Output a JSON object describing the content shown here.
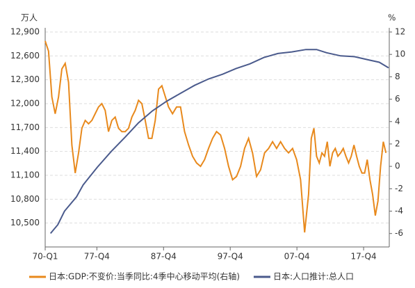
{
  "chart_data": {
    "type": "line",
    "y_unit_label": "万人",
    "y2_unit_label": "%",
    "xlim": [
      1970,
      2021.6
    ],
    "xticks": [
      {
        "value": 1970,
        "label": "70-Q1"
      },
      {
        "value": 1977.75,
        "label": "77-Q4"
      },
      {
        "value": 1987.75,
        "label": "87-Q4"
      },
      {
        "value": 1997.75,
        "label": "97-Q4"
      },
      {
        "value": 2007.75,
        "label": "07-Q4"
      },
      {
        "value": 2017.75,
        "label": "17-Q4"
      }
    ],
    "ylim": [
      10200,
      12900
    ],
    "yticks": [
      {
        "value": 10500,
        "label": "10,500"
      },
      {
        "value": 10800,
        "label": "10,800"
      },
      {
        "value": 11100,
        "label": "11,100"
      },
      {
        "value": 11400,
        "label": "11,400"
      },
      {
        "value": 11700,
        "label": "11,700"
      },
      {
        "value": 12000,
        "label": "12,000"
      },
      {
        "value": 12300,
        "label": "12,300"
      },
      {
        "value": 12600,
        "label": "12,600"
      },
      {
        "value": 12900,
        "label": "12,900"
      }
    ],
    "y2lim": [
      -7.2,
      12
    ],
    "y2ticks": [
      -6,
      -4,
      -2,
      0,
      2,
      4,
      6,
      8,
      10,
      12
    ],
    "grid": true,
    "series": [
      {
        "name": "日本:GDP:不变价:当季同比:4季中心移动平均(右轴)",
        "color": "#e8891c",
        "axis": "y2",
        "x": [
          1970,
          1970.5,
          1971,
          1971.5,
          1972,
          1972.5,
          1973,
          1973.5,
          1974,
          1974.5,
          1975,
          1975.5,
          1976,
          1976.5,
          1977,
          1977.5,
          1978,
          1978.5,
          1979,
          1979.5,
          1980,
          1980.5,
          1981,
          1981.5,
          1982,
          1982.5,
          1983,
          1983.5,
          1984,
          1984.5,
          1985,
          1985.5,
          1986,
          1986.5,
          1987,
          1987.5,
          1988.5,
          1989.1,
          1989.7,
          1990.3,
          1990.9,
          1991.5,
          1992.1,
          1992.7,
          1993.3,
          1993.9,
          1994.5,
          1995.1,
          1995.7,
          1996.3,
          1996.9,
          1997.5,
          1998.1,
          1998.7,
          1999.3,
          1999.9,
          2000.5,
          2001.1,
          2001.7,
          2002.3,
          2002.9,
          2003.5,
          2004.1,
          2004.7,
          2005.3,
          2005.9,
          2006.5,
          2007.1,
          2007.7,
          2008.3,
          2008.9,
          2009.5,
          2009.9,
          2010.3,
          2010.7,
          2011.1,
          2011.5,
          2011.9,
          2012.3,
          2012.7,
          2013.1,
          2013.5,
          2013.9,
          2014.3,
          2014.7,
          2015.1,
          2015.5,
          2015.9,
          2016.3,
          2016.7,
          2017.1,
          2017.5,
          2017.9,
          2018.3,
          2018.7,
          2019.1,
          2019.5,
          2019.9,
          2020.3,
          2020.7,
          2021.1
        ],
        "values": [
          11.2,
          10.3,
          6.2,
          4.7,
          6.2,
          8.7,
          9.2,
          7.5,
          1.9,
          -0.6,
          1.2,
          3.4,
          4.1,
          3.8,
          4.1,
          4.7,
          5.3,
          5.6,
          5.0,
          3.1,
          4.1,
          4.4,
          3.4,
          3.1,
          3.1,
          3.4,
          4.4,
          5.0,
          5.9,
          5.6,
          4.1,
          2.5,
          2.5,
          4.1,
          6.9,
          7.2,
          5.3,
          4.7,
          5.3,
          5.3,
          3.1,
          1.9,
          0.9,
          0.3,
          0.0,
          0.6,
          1.6,
          2.5,
          3.1,
          2.8,
          1.6,
          0.0,
          -1.2,
          -0.9,
          0.0,
          1.6,
          2.5,
          1.2,
          -0.9,
          -0.3,
          1.2,
          1.6,
          2.2,
          1.6,
          2.2,
          1.6,
          1.2,
          1.6,
          0.6,
          -1.2,
          -5.9,
          -2.5,
          2.5,
          3.4,
          0.9,
          0.3,
          1.2,
          0.9,
          2.2,
          0.0,
          1.2,
          1.6,
          0.9,
          1.2,
          1.6,
          0.9,
          0.3,
          0.9,
          1.9,
          0.9,
          0.0,
          -0.6,
          -0.6,
          0.6,
          -1.2,
          -2.5,
          -4.4,
          -3.1,
          0.0,
          2.2,
          1.2
        ]
      },
      {
        "name": "日本:人口推计:总人口",
        "color": "#4a5a8c",
        "axis": "y",
        "x": [
          1970.8,
          1971.9,
          1972.9,
          1974.7,
          1975.7,
          1977.8,
          1979.9,
          1982,
          1984,
          1986.1,
          1988.2,
          1990.3,
          1992.4,
          1994.5,
          1996.6,
          1998.6,
          2000.7,
          2002.8,
          2004.9,
          2007,
          2009.1,
          2010.7,
          2012.2,
          2014.3,
          2016.4,
          2018.5,
          2020.1,
          2021.5
        ],
        "values": [
          10370,
          10480,
          10650,
          10830,
          10980,
          11200,
          11400,
          11580,
          11760,
          11910,
          12030,
          12130,
          12230,
          12310,
          12370,
          12440,
          12500,
          12580,
          12630,
          12650,
          12680,
          12680,
          12640,
          12600,
          12590,
          12550,
          12520,
          12450
        ]
      }
    ]
  }
}
